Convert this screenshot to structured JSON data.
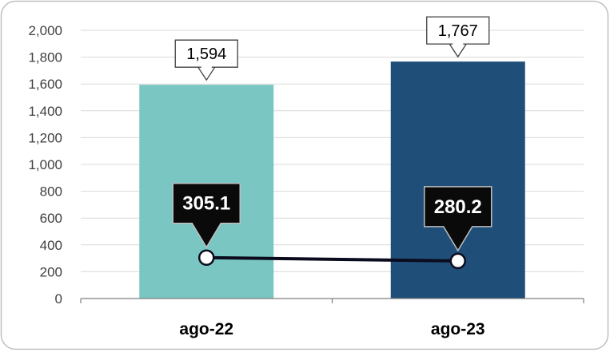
{
  "chart_data": {
    "type": "bar",
    "categories": [
      "ago-22",
      "ago-23"
    ],
    "series": [
      {
        "type": "bar",
        "values": [
          1594,
          1767
        ],
        "value_labels": [
          "1,594",
          "1,767"
        ],
        "colors": [
          "#7AC6C2",
          "#1F4E79"
        ]
      },
      {
        "type": "line",
        "values": [
          305.1,
          280.2
        ],
        "value_labels": [
          "305.1",
          "280.2"
        ],
        "color": "#0B0B1E"
      }
    ],
    "ylim": [
      0,
      2000
    ],
    "yticks": [
      {
        "value": 0,
        "label": "0"
      },
      {
        "value": 200,
        "label": "200"
      },
      {
        "value": 400,
        "label": "400"
      },
      {
        "value": 600,
        "label": "600"
      },
      {
        "value": 800,
        "label": "800"
      },
      {
        "value": 1000,
        "label": "1,000"
      },
      {
        "value": 1200,
        "label": "1,200"
      },
      {
        "value": 1400,
        "label": "1,400"
      },
      {
        "value": 1600,
        "label": "1,600"
      },
      {
        "value": 1800,
        "label": "1,800"
      },
      {
        "value": 2000,
        "label": "2,000"
      }
    ],
    "grid": true,
    "title": "",
    "xlabel": "",
    "ylabel": ""
  }
}
